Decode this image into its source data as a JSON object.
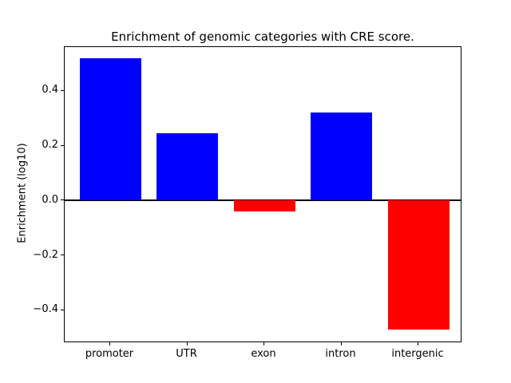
{
  "chart_data": {
    "type": "bar",
    "title": "Enrichment of genomic categories with CRE score.",
    "xlabel": "",
    "ylabel": "Enrichment (log10)",
    "categories": [
      "promoter",
      "UTR",
      "exon",
      "intron",
      "intergenic"
    ],
    "values": [
      0.52,
      0.245,
      -0.04,
      0.32,
      -0.47
    ],
    "yticks": [
      0.4,
      0.2,
      0.0,
      -0.2,
      -0.4
    ],
    "ylim": [
      -0.52,
      0.56
    ],
    "grid": false,
    "legend": "none",
    "zero_line": true,
    "positive_color": "#0000ff",
    "negative_color": "#ff0000",
    "axis_color": "#000000",
    "background_color": "#ffffff"
  }
}
